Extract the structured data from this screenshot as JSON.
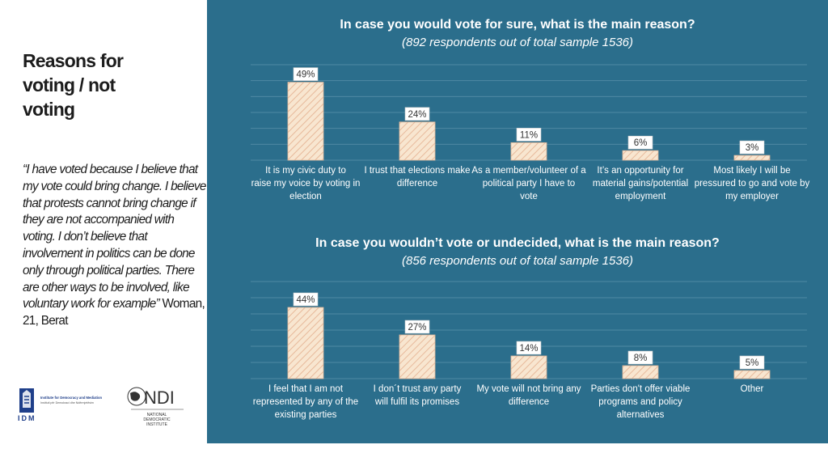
{
  "left_panel": {
    "title_lines": [
      "Reasons for",
      "voting  / not",
      "voting"
    ],
    "quote_italic": "“I have voted because I believe that my vote could bring change. I believe that protests cannot bring change if they are not accompanied with voting. I don’t believe that involvement in politics can be done only through political parties. There are other ways to be involved, like voluntary work for example”",
    "quote_attribution": " Woman, 21, Berat",
    "logo_idm_text": "IDM",
    "logo_idm_caption_1": "Institute for Democracy and Mediation",
    "logo_idm_caption_2": "Instituti për Demokraci dhe Ndërmjetësim",
    "logo_ndi_text": "NDI",
    "logo_ndi_caption": [
      "NATIONAL",
      "DEMOCRATIC",
      "INSTITUTE"
    ]
  },
  "colors": {
    "panel_bg": "#2b6e8c",
    "bar_fill": "#f8e6d0",
    "bar_stroke": "#e0b79a",
    "gridline": "#4f89a3",
    "text_light": "#ffffff"
  },
  "chart_data": [
    {
      "type": "bar",
      "title": "In case you would vote for sure, what is the main reason?",
      "subtitle": "(892 respondents out of total sample 1536)",
      "categories": [
        "It is my civic duty to raise my voice by voting in election",
        "I trust that elections make difference",
        "As a member/volunteer of a political party I have to vote",
        "It’s an opportunity for material gains/potential employment",
        "Most likely I will be pressured to go and vote by my employer"
      ],
      "values": [
        49,
        24,
        11,
        6,
        3
      ],
      "labels": [
        "49%",
        "24%",
        "11%",
        "6%",
        "3%"
      ],
      "ylim": [
        0,
        60
      ],
      "grid": true
    },
    {
      "type": "bar",
      "title": "In case you wouldn’t vote or undecided, what is the main reason?",
      "subtitle": "(856 respondents out of total sample 1536)",
      "categories": [
        "I feel that I am not represented by any of the existing parties",
        "I don´t trust any party will fulfil its promises",
        "My vote will not bring any difference",
        "Parties don't offer viable programs and policy alternatives",
        "Other"
      ],
      "values": [
        44,
        27,
        14,
        8,
        5
      ],
      "labels": [
        "44%",
        "27%",
        "14%",
        "8%",
        "5%"
      ],
      "ylim": [
        0,
        60
      ],
      "grid": true
    }
  ]
}
